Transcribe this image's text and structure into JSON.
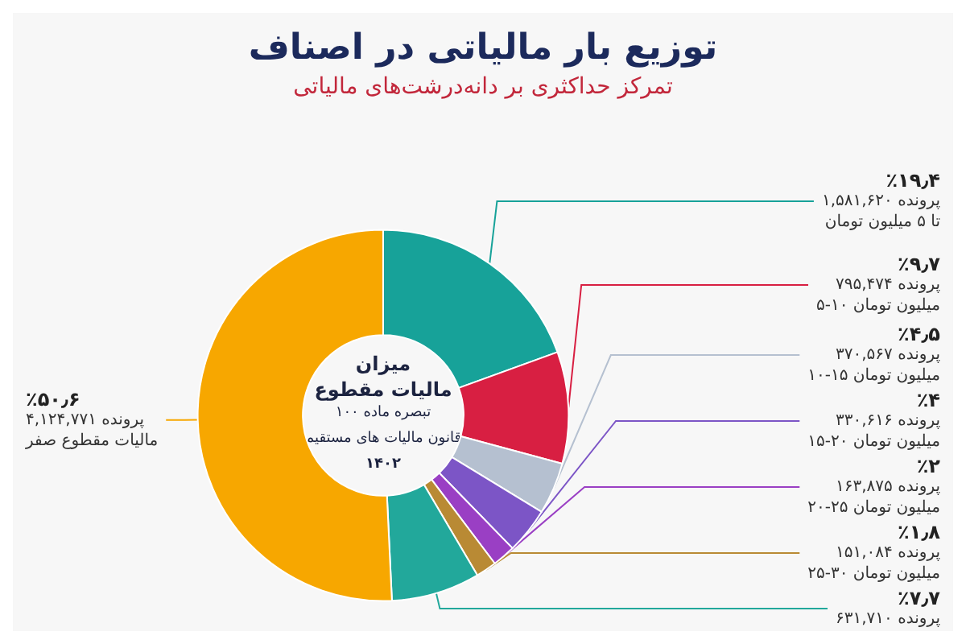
{
  "chart_data": {
    "type": "donut",
    "title": "توزیع بار مالیاتی در اصناف",
    "subtitle": "تمرکز حداکثری بر دانه‌درشت‌های مالیاتی",
    "categories": [
      "۱,۵۸۱,۶۲۰ پرونده\nتا ۵ میلیون تومان",
      "۷۹۵,۴۷۴ پرونده\n۵-۱۰ میلیون تومان",
      "۳۷۰,۵۶۷ پرونده\n۱۰-۱۵ میلیون تومان",
      "۳۳۰,۶۱۶ پرونده\n۱۵-۲۰ میلیون تومان",
      "۱۶۳,۸۷۵ پرونده\n۲۰-۲۵ میلیون تومان",
      "۱۵۱,۰۸۴ پرونده\n۲۵-۳۰ میلیون تومان",
      "۶۳۱,۷۱۰ پرونده",
      "۴,۱۲۴,۷۷۱ پرونده\nمالیات مقطوع صفر"
    ],
    "values": [
      19.4,
      9.7,
      4.5,
      4,
      2,
      1.8,
      7.7,
      50.6
    ],
    "value_labels": [
      "٪۱۹٫۴",
      "٪۹٫۷",
      "٪۴٫۵",
      "٪۴",
      "٪۲",
      "٪۱٫۸",
      "٪۷٫۷",
      "٪۵۰٫۶"
    ],
    "colors": [
      "#17a299",
      "#d81f42",
      "#b5c0d0",
      "#7c55c6",
      "#9a3fc4",
      "#b98a34",
      "#22a89b",
      "#f7a700"
    ],
    "annotations": [
      "میزان",
      "مالیات مقطوع",
      "تبصره ماده ۱۰۰",
      "قانون مالیات های مستقیم",
      "۱۴۰۲"
    ],
    "legend": false
  }
}
